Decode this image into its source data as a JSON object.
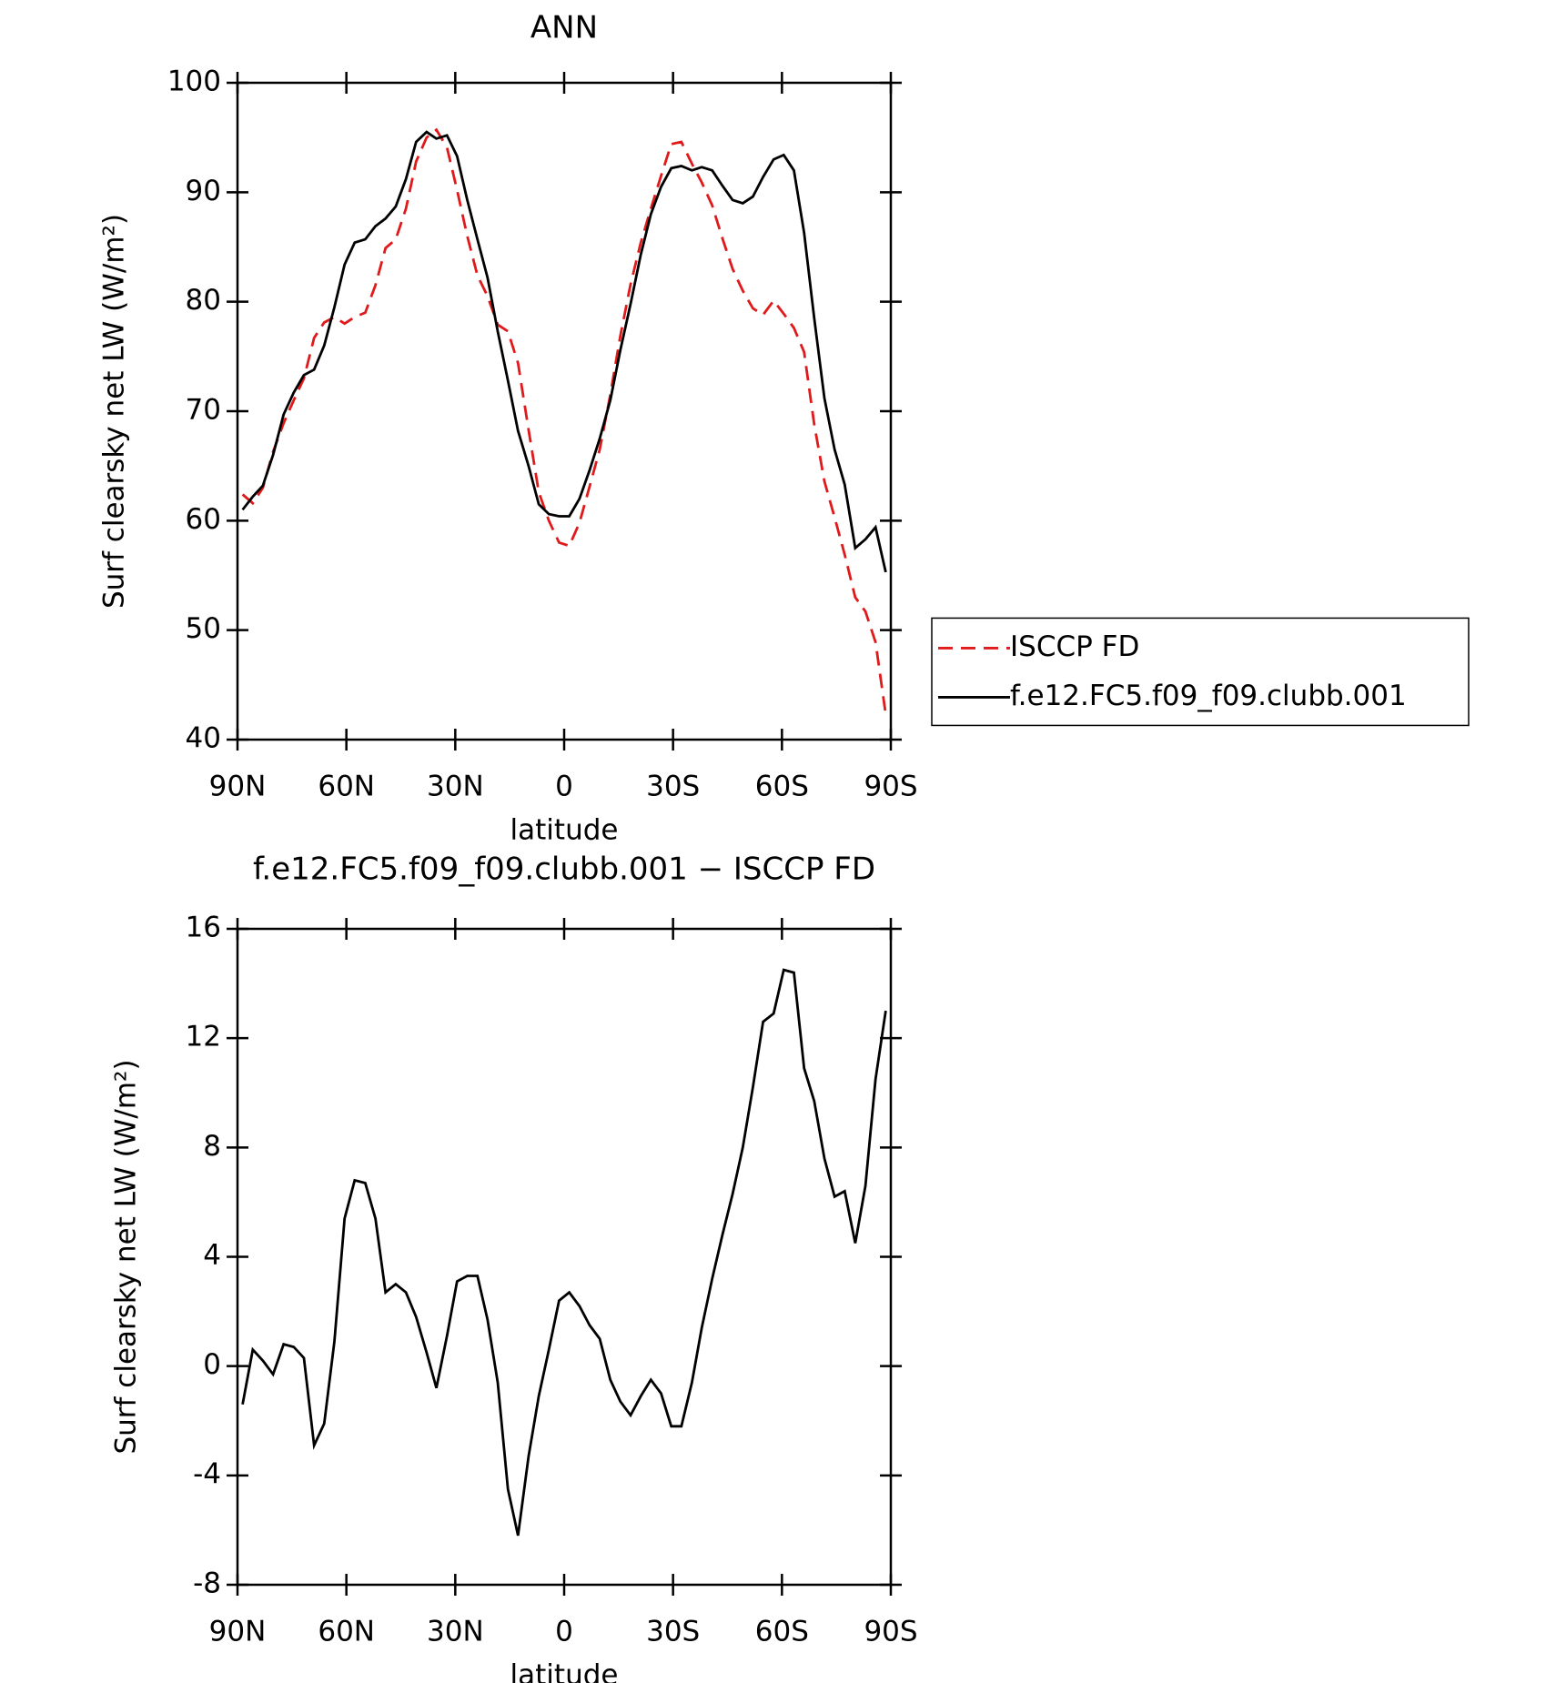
{
  "chart_data": [
    {
      "type": "line",
      "title": "ANN",
      "xlabel": "latitude",
      "ylabel": "Surf clearsky net LW (W/m²)",
      "x": [
        88.6,
        85.8,
        83.0,
        80.2,
        77.3,
        74.5,
        71.7,
        68.9,
        66.1,
        63.3,
        60.5,
        57.7,
        54.8,
        52.0,
        49.2,
        46.4,
        43.6,
        40.8,
        37.9,
        35.2,
        32.3,
        29.5,
        26.7,
        23.9,
        21.1,
        18.3,
        15.5,
        12.7,
        9.8,
        7.0,
        4.2,
        1.4,
        -1.4,
        -4.2,
        -7.0,
        -9.8,
        -12.7,
        -15.5,
        -18.3,
        -21.1,
        -23.9,
        -26.7,
        -29.5,
        -32.3,
        -35.2,
        -37.9,
        -40.8,
        -43.6,
        -46.4,
        -49.2,
        -52.0,
        -54.8,
        -57.7,
        -60.5,
        -63.3,
        -66.1,
        -68.9,
        -71.7,
        -74.5,
        -77.3,
        -80.2,
        -83.0,
        -85.8,
        -88.6
      ],
      "series": [
        {
          "name": "ISCCP FD",
          "color": "#e0191b",
          "dashed": true,
          "values": [
            62.4,
            61.6,
            63.0,
            66.3,
            68.9,
            71.0,
            73.0,
            76.7,
            78.1,
            78.6,
            78.0,
            78.6,
            79.0,
            81.5,
            84.9,
            85.7,
            88.5,
            92.8,
            95.0,
            95.7,
            94.1,
            90.2,
            86.0,
            82.4,
            80.5,
            77.9,
            77.3,
            74.4,
            68.3,
            62.6,
            60.0,
            58.0,
            57.7,
            59.8,
            63.1,
            66.5,
            71.5,
            76.9,
            81.6,
            85.4,
            88.5,
            91.5,
            94.4,
            94.6,
            92.6,
            90.9,
            88.8,
            85.8,
            83.0,
            81.0,
            79.4,
            78.8,
            80.1,
            78.9,
            77.6,
            75.4,
            68.8,
            63.6,
            60.3,
            56.9,
            53.0,
            51.7,
            48.9,
            42.3
          ]
        },
        {
          "name": "f.e12.FC5.f09_f09.clubb.001",
          "color": "#000000",
          "dashed": false,
          "values": [
            61.0,
            62.2,
            63.2,
            66.0,
            69.7,
            71.7,
            73.3,
            73.8,
            76.0,
            79.5,
            83.4,
            85.4,
            85.7,
            86.9,
            87.6,
            88.7,
            91.2,
            94.6,
            95.5,
            94.9,
            95.2,
            93.3,
            89.3,
            85.7,
            82.2,
            77.3,
            72.8,
            68.2,
            65.0,
            61.5,
            60.6,
            60.4,
            60.4,
            62.0,
            64.6,
            67.5,
            71.0,
            75.6,
            79.8,
            84.3,
            88.0,
            90.5,
            92.2,
            92.4,
            92.0,
            92.3,
            92.0,
            90.6,
            89.3,
            89.0,
            89.6,
            91.4,
            93.0,
            93.4,
            92.0,
            86.3,
            78.5,
            71.2,
            66.5,
            63.3,
            57.5,
            58.3,
            59.4,
            55.3
          ]
        }
      ],
      "xlim": [
        90,
        -90
      ],
      "xticks": [
        {
          "value": 90,
          "label": "90N"
        },
        {
          "value": 60,
          "label": "60N"
        },
        {
          "value": 30,
          "label": "30N"
        },
        0,
        {
          "value": -30,
          "label": "30S"
        },
        {
          "value": -60,
          "label": "60S"
        },
        {
          "value": -90,
          "label": "90S"
        }
      ],
      "ylim": [
        40,
        100
      ],
      "yticks": [
        40,
        50,
        60,
        70,
        80,
        90,
        100
      ],
      "legend": "outside-right"
    },
    {
      "type": "line",
      "title": "f.e12.FC5.f09_f09.clubb.001 − ISCCP FD",
      "xlabel": "latitude",
      "ylabel": "Surf clearsky net LW (W/m²)",
      "x": [
        88.6,
        85.8,
        83.0,
        80.2,
        77.3,
        74.5,
        71.7,
        68.9,
        66.1,
        63.3,
        60.5,
        57.7,
        54.8,
        52.0,
        49.2,
        46.4,
        43.6,
        40.8,
        37.9,
        35.2,
        32.3,
        29.5,
        26.7,
        23.9,
        21.1,
        18.3,
        15.5,
        12.7,
        9.8,
        7.0,
        4.2,
        1.4,
        -1.4,
        -4.2,
        -7.0,
        -9.8,
        -12.7,
        -15.5,
        -18.3,
        -21.1,
        -23.9,
        -26.7,
        -29.5,
        -32.3,
        -35.2,
        -37.9,
        -40.8,
        -43.6,
        -46.4,
        -49.2,
        -52.0,
        -54.8,
        -57.7,
        -60.5,
        -63.3,
        -66.1,
        -68.9,
        -71.7,
        -74.5,
        -77.3,
        -80.2,
        -83.0,
        -85.8,
        -88.6
      ],
      "color": "#000000",
      "values": [
        -1.4,
        0.6,
        0.2,
        -0.3,
        0.8,
        0.7,
        0.3,
        -2.9,
        -2.1,
        0.9,
        5.4,
        6.8,
        6.7,
        5.4,
        2.7,
        3.0,
        2.7,
        1.8,
        0.5,
        -0.8,
        1.1,
        3.1,
        3.3,
        3.3,
        1.7,
        -0.6,
        -4.5,
        -6.2,
        -3.3,
        -1.1,
        0.6,
        2.4,
        2.7,
        2.2,
        1.5,
        1.0,
        -0.5,
        -1.3,
        -1.8,
        -1.1,
        -0.5,
        -1.0,
        -2.2,
        -2.2,
        -0.6,
        1.4,
        3.2,
        4.8,
        6.3,
        8.0,
        10.2,
        12.6,
        12.9,
        14.5,
        14.4,
        10.9,
        9.7,
        7.6,
        6.2,
        6.4,
        4.5,
        6.6,
        10.5,
        13.0
      ],
      "xlim": [
        90,
        -90
      ],
      "xticks": [
        {
          "value": 90,
          "label": "90N"
        },
        {
          "value": 60,
          "label": "60N"
        },
        {
          "value": 30,
          "label": "30N"
        },
        0,
        {
          "value": -30,
          "label": "30S"
        },
        {
          "value": -60,
          "label": "60S"
        },
        {
          "value": -90,
          "label": "90S"
        }
      ],
      "ylim": [
        -8,
        16
      ],
      "yticks": [
        -8,
        -4,
        0,
        4,
        8,
        12,
        16
      ]
    }
  ]
}
